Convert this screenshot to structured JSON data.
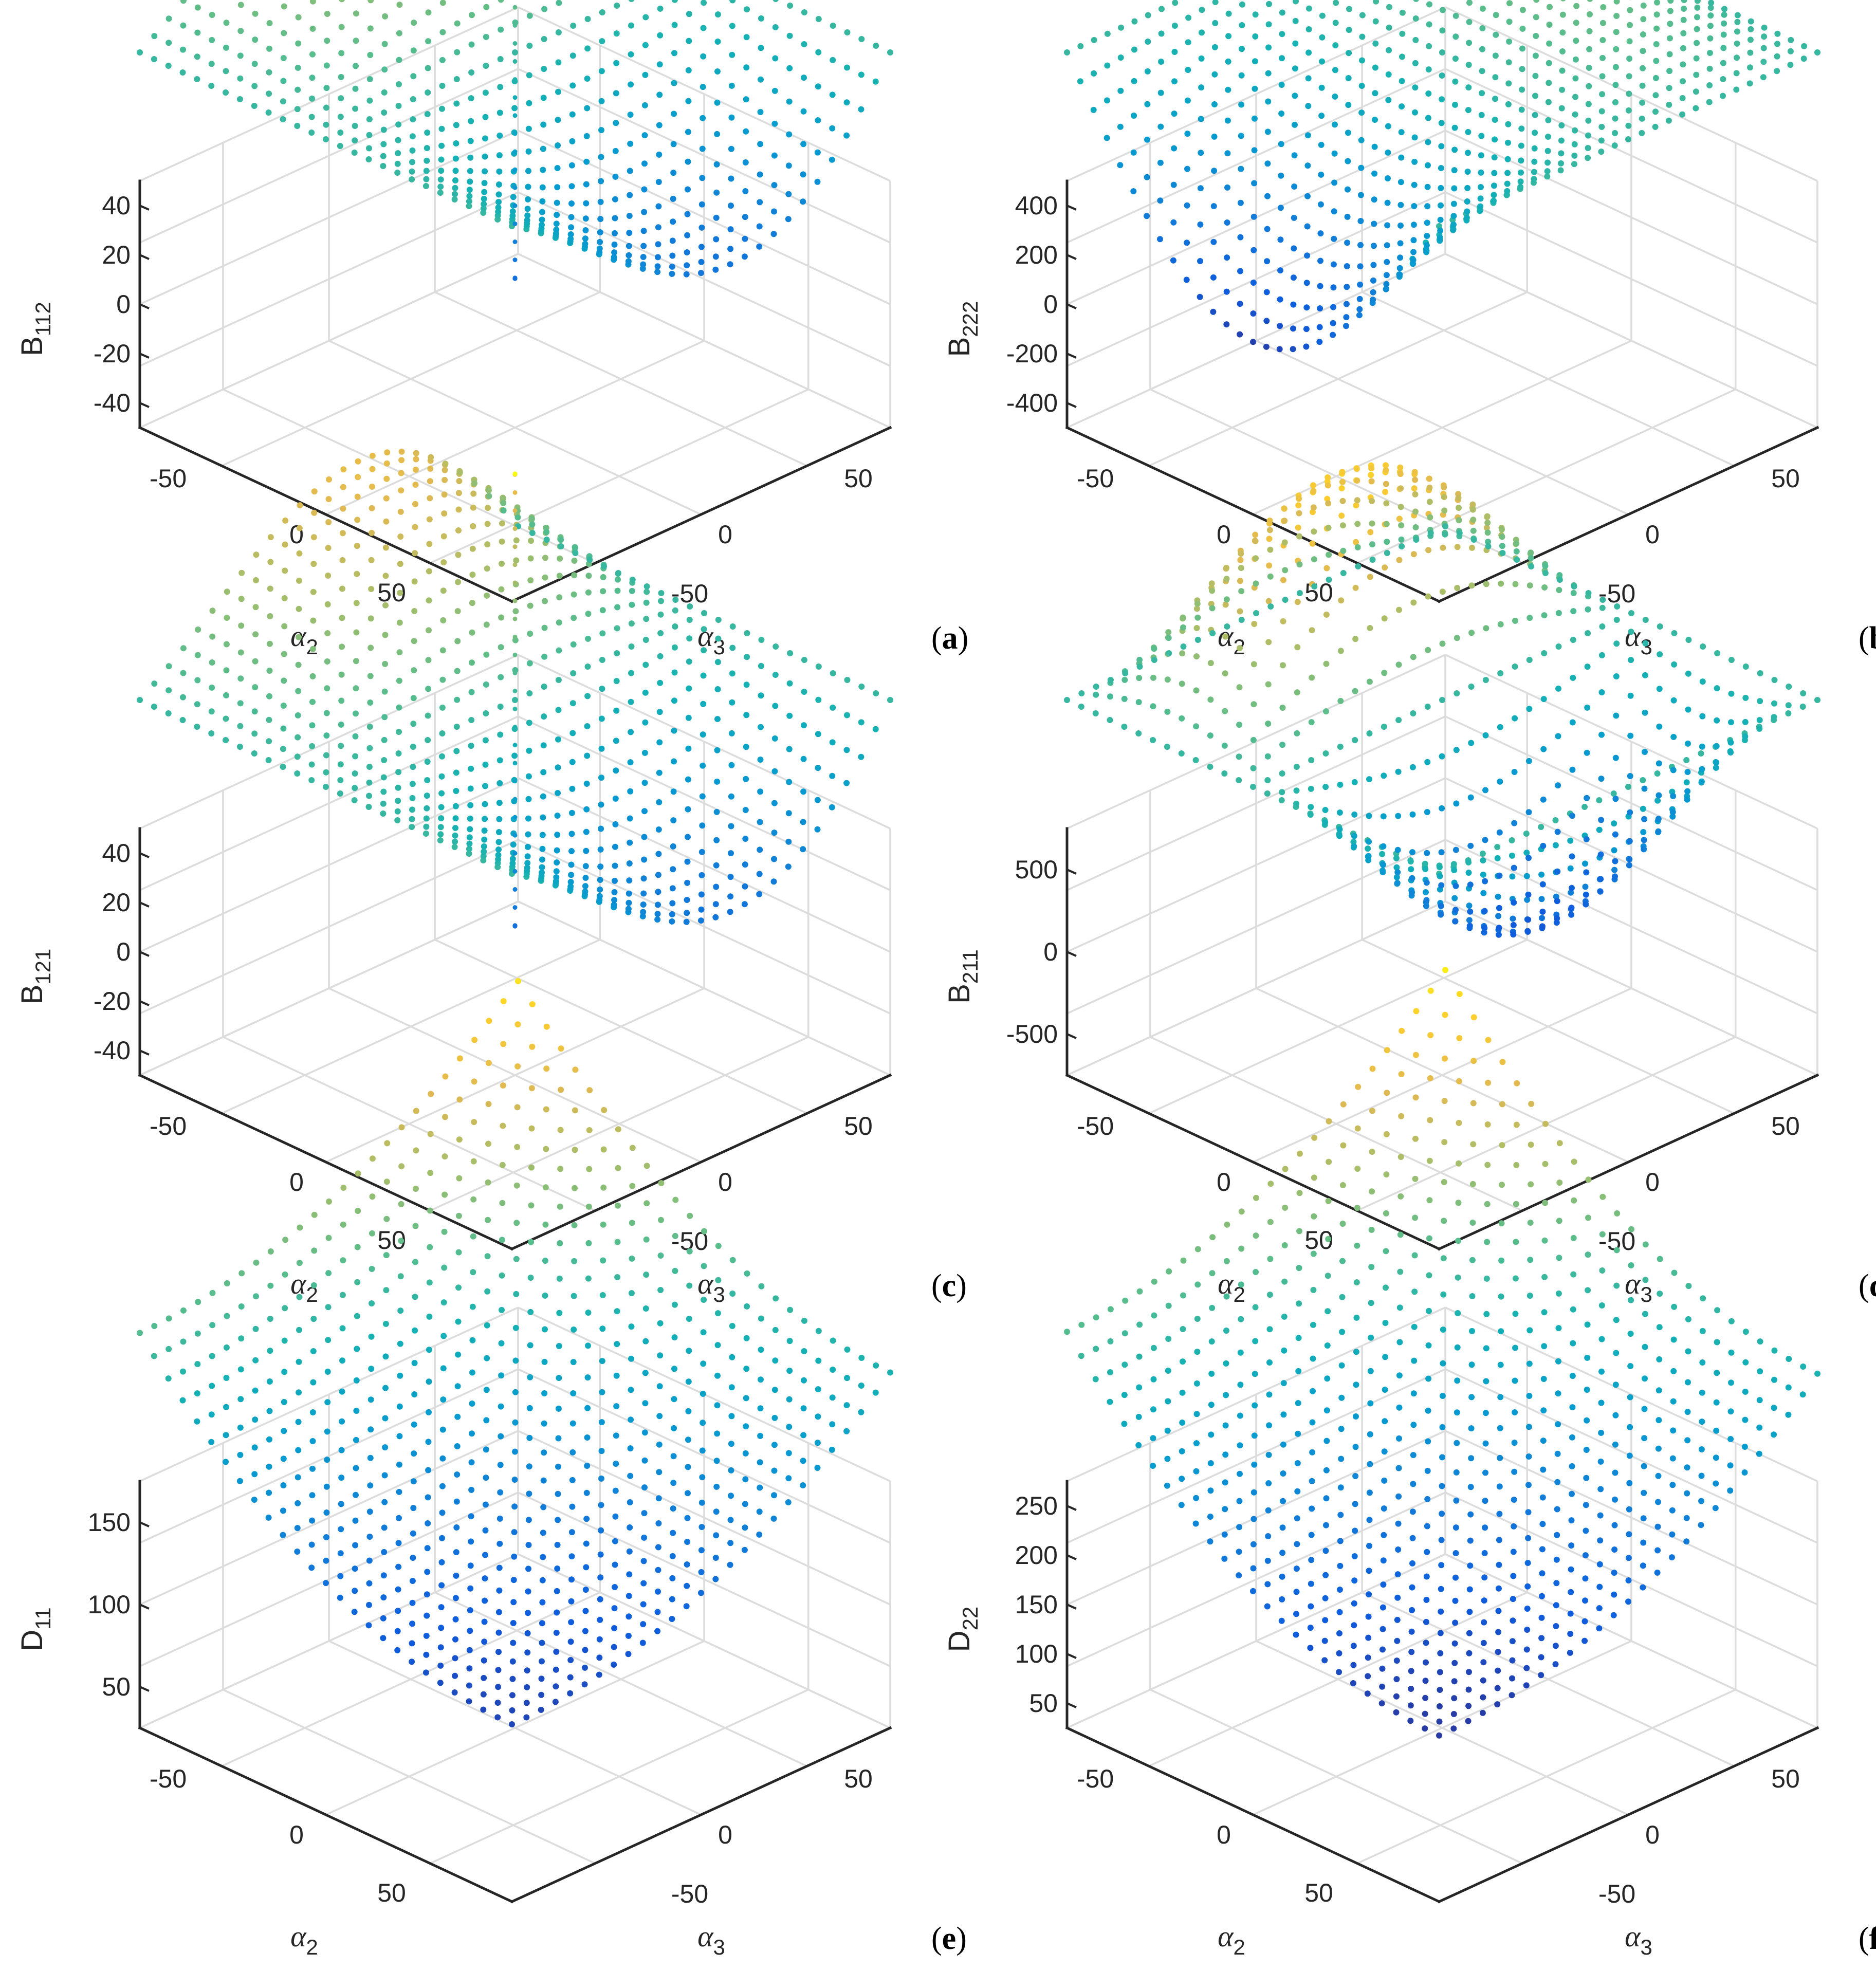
{
  "chart_data": [
    {
      "type": "scatter3d",
      "panel_label": "a",
      "zlabel": "B",
      "zlabel_sub": "112",
      "xlabel": "α",
      "xlabel_sub": "2",
      "ylabel": "α",
      "ylabel_sub": "3",
      "xticks": [
        "-50",
        "0",
        "50"
      ],
      "yticks": [
        "-50",
        "0",
        "50"
      ],
      "zticks": [
        "40",
        "20",
        "0",
        "-20",
        "-40"
      ],
      "zlim": [
        -45,
        45
      ],
      "grid": true,
      "colormap": "parula",
      "surface": "antisymmetric",
      "peak_low": -70,
      "peak_high": 70
    },
    {
      "type": "scatter3d",
      "panel_label": "b",
      "zlabel": "B",
      "zlabel_sub": "222",
      "xlabel": "α",
      "xlabel_sub": "2",
      "ylabel": "α",
      "ylabel_sub": "3",
      "xticks": [
        "-50",
        "0",
        "50"
      ],
      "yticks": [
        "-50",
        "0",
        "50"
      ],
      "zticks": [
        "400",
        "200",
        "0",
        "-200",
        "-400"
      ],
      "zlim": [
        -480,
        480
      ],
      "grid": true,
      "colormap": "parula",
      "surface": "lens"
    },
    {
      "type": "scatter3d",
      "panel_label": "c",
      "zlabel": "B",
      "zlabel_sub": "121",
      "xlabel": "α",
      "xlabel_sub": "2",
      "ylabel": "α",
      "ylabel_sub": "3",
      "xticks": [
        "-50",
        "0",
        "50"
      ],
      "yticks": [
        "-50",
        "0",
        "50"
      ],
      "zticks": [
        "40",
        "20",
        "0",
        "-20",
        "-40"
      ],
      "zlim": [
        -45,
        45
      ],
      "grid": true,
      "colormap": "parula",
      "surface": "antisymmetric",
      "peak_low": -70,
      "peak_high": 70
    },
    {
      "type": "scatter3d",
      "panel_label": "d",
      "zlabel": "B",
      "zlabel_sub": "211",
      "xlabel": "α",
      "xlabel_sub": "2",
      "ylabel": "α",
      "ylabel_sub": "3",
      "xticks": [
        "-50",
        "0",
        "50"
      ],
      "yticks": [
        "-50",
        "0",
        "50"
      ],
      "zticks": [
        "500",
        "0",
        "-500"
      ],
      "zlim": [
        -650,
        650
      ],
      "grid": true,
      "colormap": "parula",
      "surface": "loops"
    },
    {
      "type": "scatter3d",
      "panel_label": "e",
      "zlabel": "D",
      "zlabel_sub": "11",
      "xlabel": "α",
      "xlabel_sub": "2",
      "ylabel": "α",
      "ylabel_sub": "3",
      "xticks": [
        "-50",
        "0",
        "50"
      ],
      "yticks": [
        "-50",
        "0",
        "50"
      ],
      "zticks": [
        "150",
        "100",
        "50"
      ],
      "zlim": [
        0,
        160
      ],
      "grid": true,
      "colormap": "parula",
      "surface": "bowl"
    },
    {
      "type": "scatter3d",
      "panel_label": "f",
      "zlabel": "D",
      "zlabel_sub": "22",
      "xlabel": "α",
      "xlabel_sub": "2",
      "ylabel": "α",
      "ylabel_sub": "3",
      "xticks": [
        "-50",
        "0",
        "50"
      ],
      "yticks": [
        "-50",
        "0",
        "50"
      ],
      "zticks": [
        "250",
        "200",
        "150",
        "100",
        "50"
      ],
      "zlim": [
        20,
        285
      ],
      "grid": true,
      "colormap": "parula",
      "surface": "bowl2"
    }
  ]
}
